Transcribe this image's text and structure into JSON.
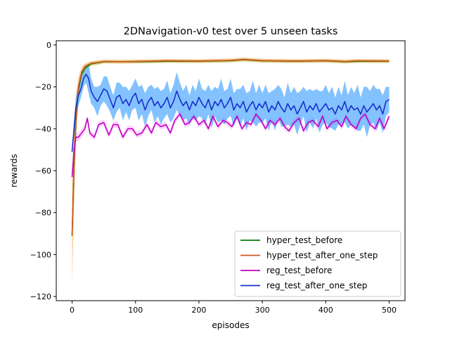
{
  "chart_data": {
    "type": "line",
    "title": "2DNavigation-v0 test over 5 unseen tasks",
    "xlabel": "episodes",
    "ylabel": "rewards",
    "xlim": [
      -25,
      525
    ],
    "ylim": [
      -122,
      2
    ],
    "xticks": [
      0,
      100,
      200,
      300,
      400,
      500
    ],
    "yticks": [
      0,
      -20,
      -40,
      -60,
      -80,
      -100,
      -120
    ],
    "grid": false,
    "legend_position": "lower-right",
    "series": [
      {
        "name": "hyper_test_before",
        "color": "#008000",
        "band_color": "#90ee90",
        "x": [
          0,
          3,
          6,
          10,
          15,
          20,
          25,
          30,
          40,
          50,
          75,
          100,
          150,
          200,
          250,
          270,
          300,
          350,
          400,
          430,
          450,
          500
        ],
        "y": [
          -91,
          -58,
          -36,
          -21,
          -14,
          -11,
          -10,
          -9,
          -8.5,
          -8,
          -8,
          -8,
          -7.8,
          -7.8,
          -7.5,
          -7,
          -7.6,
          -7.8,
          -7.6,
          -8,
          -7.8,
          -7.8
        ],
        "band": [
          5,
          18,
          10,
          4,
          2,
          1.5,
          1,
          1,
          1,
          0.8,
          0.8,
          0.8,
          0.8,
          0.8,
          0.8,
          0.8,
          0.8,
          0.8,
          0.8,
          0.8,
          0.8,
          0.8
        ]
      },
      {
        "name": "hyper_test_after_one_step",
        "color": "#d2541e",
        "band_color": "#ffa54f",
        "x": [
          0,
          3,
          6,
          10,
          15,
          20,
          25,
          30,
          40,
          50,
          75,
          100,
          150,
          200,
          250,
          270,
          300,
          350,
          400,
          430,
          450,
          500
        ],
        "y": [
          -91,
          -57,
          -35,
          -20,
          -13,
          -10.5,
          -9.5,
          -8.8,
          -8.4,
          -7.9,
          -8,
          -7.9,
          -7.6,
          -7.7,
          -7.4,
          -6.9,
          -7.5,
          -7.7,
          -7.5,
          -7.9,
          -7.6,
          -7.7
        ],
        "band": [
          24,
          20,
          11,
          5,
          2.5,
          1.5,
          1.2,
          1,
          1,
          0.9,
          0.9,
          0.9,
          0.9,
          0.9,
          0.9,
          0.9,
          0.9,
          0.9,
          0.9,
          0.9,
          0.9,
          0.9
        ]
      },
      {
        "name": "reg_test_before",
        "color": "#bf00bf",
        "band_color": "#ffb0ff",
        "x": [
          0,
          3,
          6,
          10,
          15,
          20,
          24,
          28,
          35,
          42,
          50,
          58,
          65,
          72,
          80,
          88,
          95,
          102,
          110,
          118,
          125,
          132,
          140,
          148,
          155,
          162,
          170,
          178,
          185,
          192,
          200,
          208,
          215,
          222,
          230,
          238,
          245,
          252,
          260,
          268,
          275,
          282,
          290,
          298,
          305,
          312,
          320,
          328,
          335,
          342,
          350,
          358,
          365,
          372,
          380,
          388,
          395,
          402,
          410,
          418,
          425,
          432,
          440,
          448,
          455,
          462,
          470,
          478,
          485,
          492,
          500
        ],
        "y": [
          -63,
          -50,
          -44,
          -44,
          -42,
          -40,
          -35,
          -42,
          -44,
          -38,
          -37,
          -43,
          -38,
          -38,
          -44,
          -40,
          -40,
          -43,
          -42,
          -38,
          -42,
          -37,
          -39,
          -38,
          -42,
          -36,
          -33,
          -38,
          -37,
          -34,
          -38,
          -36,
          -40,
          -34,
          -39,
          -36,
          -37,
          -39,
          -34,
          -40,
          -37,
          -38,
          -33,
          -36,
          -40,
          -36,
          -38,
          -35,
          -39,
          -41,
          -37,
          -35,
          -41,
          -37,
          -36,
          -39,
          -34,
          -40,
          -37,
          -36,
          -39,
          -34,
          -38,
          -40,
          -35,
          -33,
          -38,
          -40,
          -35,
          -40,
          -34
        ],
        "band": [
          3,
          3,
          2,
          2,
          2,
          2,
          1.5,
          1.5,
          1.5,
          1.5,
          1.5,
          1.5,
          1.5,
          1.5,
          1.5,
          1.5,
          1.5,
          1.5,
          1.5,
          1.5,
          1.5,
          1.5,
          1.5,
          1.5,
          1.5,
          1.5,
          1.5,
          1.5,
          1.5,
          1.5,
          1.5,
          1.5,
          1.5,
          1.5,
          1.5,
          1.5,
          1.5,
          1.5,
          1.5,
          1.5,
          1.5,
          1.5,
          1.5,
          1.5,
          1.5,
          1.5,
          1.5,
          1.5,
          1.5,
          1.5,
          1.5,
          1.5,
          1.5,
          1.5,
          1.5,
          1.5,
          1.5,
          1.5,
          1.5,
          1.5,
          1.5,
          1.5,
          1.5,
          1.5,
          1.5,
          1.5,
          1.5,
          1.5,
          1.5,
          1.5,
          1.5
        ]
      },
      {
        "name": "reg_test_after_one_step",
        "color": "#1a2fcc",
        "band_color": "#1e90ff",
        "x": [
          0,
          3,
          6,
          10,
          14,
          18,
          22,
          26,
          30,
          35,
          40,
          45,
          50,
          55,
          60,
          65,
          70,
          75,
          80,
          85,
          90,
          95,
          100,
          105,
          110,
          115,
          120,
          125,
          130,
          135,
          140,
          145,
          150,
          155,
          160,
          165,
          170,
          175,
          180,
          185,
          190,
          195,
          200,
          205,
          210,
          215,
          220,
          225,
          230,
          235,
          240,
          245,
          250,
          255,
          260,
          265,
          270,
          275,
          280,
          285,
          290,
          295,
          300,
          305,
          310,
          315,
          320,
          325,
          330,
          335,
          340,
          345,
          350,
          355,
          360,
          365,
          370,
          375,
          380,
          385,
          390,
          395,
          400,
          405,
          410,
          415,
          420,
          425,
          430,
          435,
          440,
          445,
          450,
          455,
          460,
          465,
          470,
          475,
          480,
          485,
          490,
          495,
          500
        ],
        "y": [
          -51,
          -40,
          -30,
          -24,
          -21,
          -16,
          -14,
          -16,
          -22,
          -25,
          -27,
          -24,
          -21,
          -22,
          -26,
          -30,
          -25,
          -24,
          -28,
          -26,
          -29,
          -25,
          -23,
          -28,
          -26,
          -31,
          -27,
          -25,
          -29,
          -27,
          -30,
          -28,
          -25,
          -30,
          -27,
          -22,
          -26,
          -29,
          -27,
          -31,
          -27,
          -29,
          -25,
          -28,
          -30,
          -26,
          -31,
          -27,
          -29,
          -26,
          -30,
          -28,
          -25,
          -31,
          -28,
          -30,
          -27,
          -32,
          -29,
          -27,
          -31,
          -28,
          -30,
          -27,
          -32,
          -29,
          -31,
          -27,
          -30,
          -32,
          -28,
          -31,
          -29,
          -33,
          -30,
          -27,
          -32,
          -29,
          -31,
          -28,
          -32,
          -30,
          -28,
          -31,
          -30,
          -33,
          -29,
          -31,
          -27,
          -32,
          -29,
          -31,
          -30,
          -33,
          -29,
          -32,
          -30,
          -28,
          -31,
          -29,
          -33,
          -27,
          -26
        ],
        "band": [
          2,
          4,
          5,
          5,
          4,
          4,
          4,
          7,
          6,
          5,
          7,
          5,
          6,
          7,
          6,
          6,
          7,
          6,
          8,
          6,
          7,
          6,
          7,
          8,
          7,
          8,
          7,
          6,
          8,
          7,
          8,
          7,
          8,
          7,
          8,
          9,
          8,
          7,
          8,
          7,
          8,
          7,
          9,
          7,
          8,
          7,
          9,
          7,
          8,
          10,
          8,
          7,
          9,
          8,
          7,
          9,
          8,
          9,
          7,
          10,
          8,
          9,
          7,
          8,
          9,
          7,
          10,
          8,
          9,
          7,
          10,
          8,
          9,
          10,
          8,
          7,
          10,
          8,
          9,
          7,
          10,
          8,
          9,
          8,
          10,
          8,
          9,
          7,
          10,
          8,
          9,
          8,
          11,
          8,
          9,
          12,
          8,
          9,
          10,
          8,
          9,
          7,
          6
        ]
      }
    ]
  }
}
